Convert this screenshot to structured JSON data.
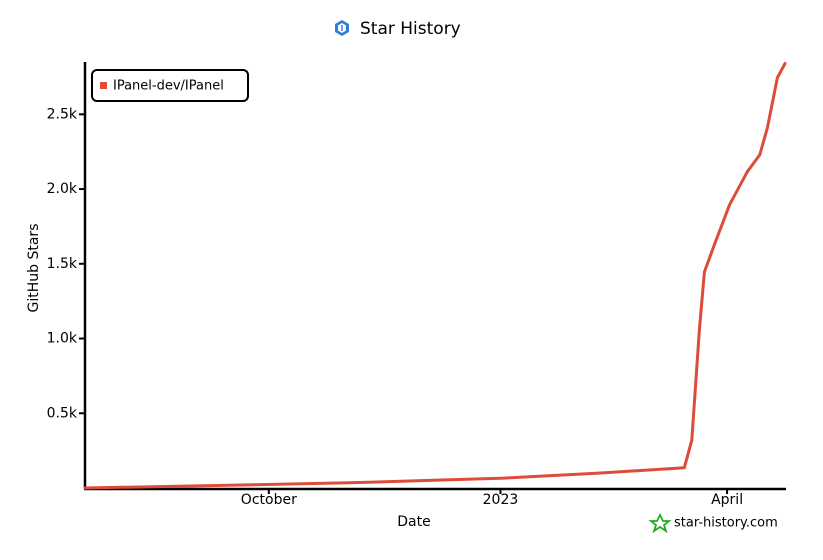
{
  "chart_data": {
    "type": "line",
    "title": "Star History",
    "xlabel": "Date",
    "ylabel": "GitHub Stars",
    "x": [
      "2022-07-20",
      "2022-09-20",
      "2022-11-02",
      "2022-12-12",
      "2023-01-01",
      "2023-02-09",
      "2023-03-15",
      "2023-03-18",
      "2023-03-21",
      "2023-03-23",
      "2023-03-27",
      "2023-04-02",
      "2023-04-09",
      "2023-04-14",
      "2023-04-17",
      "2023-04-21",
      "2023-04-24"
    ],
    "series": [
      {
        "name": "IPanel-dev/IPanel",
        "color": "#dd4b39",
        "values": [
          0,
          20,
          35,
          55,
          65,
          100,
          135,
          320,
          1060,
          1445,
          1630,
          1895,
          2115,
          2230,
          2410,
          2745,
          2840
        ]
      }
    ],
    "xlim": [
      "2022-07-20",
      "2023-04-24"
    ],
    "xticks": [
      {
        "value": "2022-10-01",
        "label": "October"
      },
      {
        "value": "2023-01-01",
        "label": "2023"
      },
      {
        "value": "2023-04-01",
        "label": "April"
      }
    ],
    "ylim": [
      0,
      2850
    ],
    "yticks": [
      {
        "value": 500,
        "label": "0.5k"
      },
      {
        "value": 1000,
        "label": "1.0k"
      },
      {
        "value": 1500,
        "label": "1.5k"
      },
      {
        "value": 2000,
        "label": "2.0k"
      },
      {
        "value": 2500,
        "label": "2.5k"
      }
    ],
    "legend": "top-left",
    "credit": "star-history.com"
  }
}
